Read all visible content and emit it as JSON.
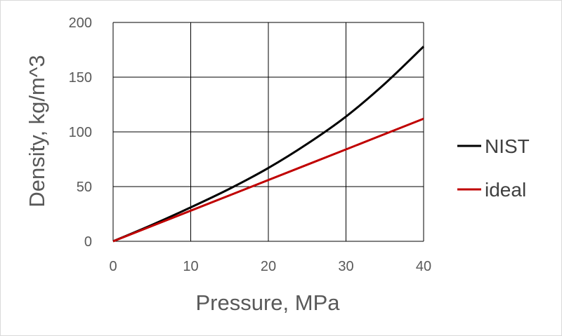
{
  "chart_data": {
    "type": "line",
    "title": "",
    "xlabel": "Pressure, MPa",
    "ylabel": "Density, kg/m^3",
    "xlim": [
      0,
      40
    ],
    "ylim": [
      0,
      200
    ],
    "xticks": [
      0,
      10,
      20,
      30,
      40
    ],
    "yticks": [
      0,
      50,
      100,
      150,
      200
    ],
    "grid": true,
    "legend_position": "right",
    "series": [
      {
        "name": "NIST",
        "color": "#000000",
        "x": [
          0,
          5,
          10,
          15,
          20,
          25,
          30,
          35,
          40
        ],
        "y": [
          0,
          15,
          31,
          48,
          67,
          89,
          114,
          144,
          178
        ]
      },
      {
        "name": "ideal",
        "color": "#c00000",
        "x": [
          0,
          10,
          20,
          30,
          40
        ],
        "y": [
          0,
          28,
          56,
          84,
          112
        ]
      }
    ]
  }
}
